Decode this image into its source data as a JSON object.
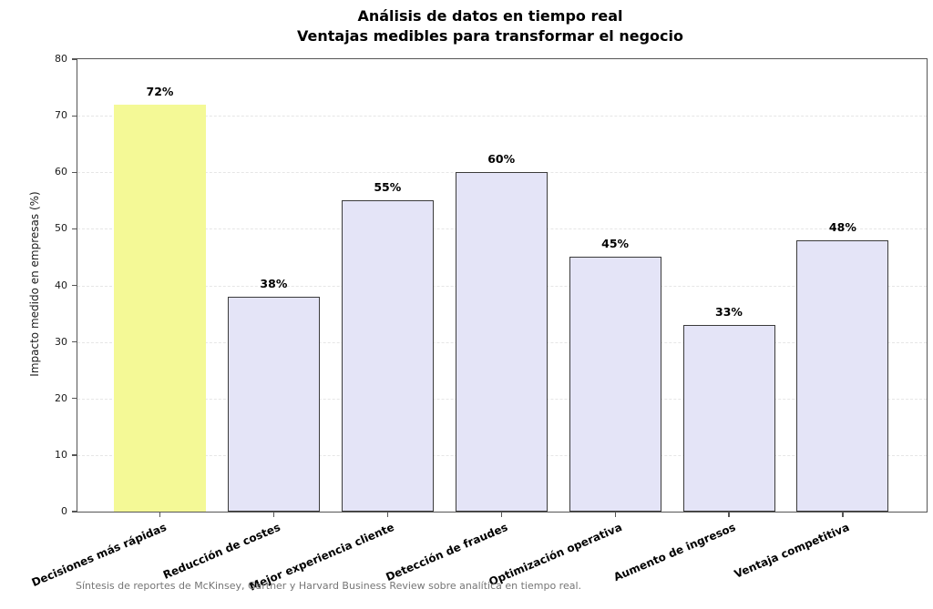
{
  "chart_data": {
    "type": "bar",
    "title": "Análisis de datos en tiempo real",
    "subtitle": "Ventajas medibles para transformar el negocio",
    "ylabel": "Impacto medido en empresas (%)",
    "xlabel": "",
    "ylim": [
      0,
      80
    ],
    "yticks": [
      0,
      10,
      20,
      30,
      40,
      50,
      60,
      70,
      80
    ],
    "grid": "horizontal dashed, behind bars",
    "legend_position": "none",
    "categories": [
      "Decisiones más rápidas",
      "Reducción de costes",
      "Mejor experiencia cliente",
      "Detección de fraudes",
      "Optimización operativa",
      "Aumento de ingresos",
      "Ventaja competitiva"
    ],
    "values": [
      72,
      38,
      55,
      60,
      45,
      33,
      48
    ],
    "value_label_suffix": "%",
    "highlight_index": 0,
    "colors": {
      "highlight_bar_fill": "#f4f996",
      "bar_fill": "#e4e4f7",
      "bar_border": "#3b3b3b",
      "axis_spine": "#555555",
      "gridline": "#e6e6e6",
      "label_text": "#000000",
      "footnote_text": "#757575"
    },
    "footnote": "Síntesis de reportes de McKinsey, Gartner y Harvard Business Review sobre analítica en tiempo real."
  }
}
